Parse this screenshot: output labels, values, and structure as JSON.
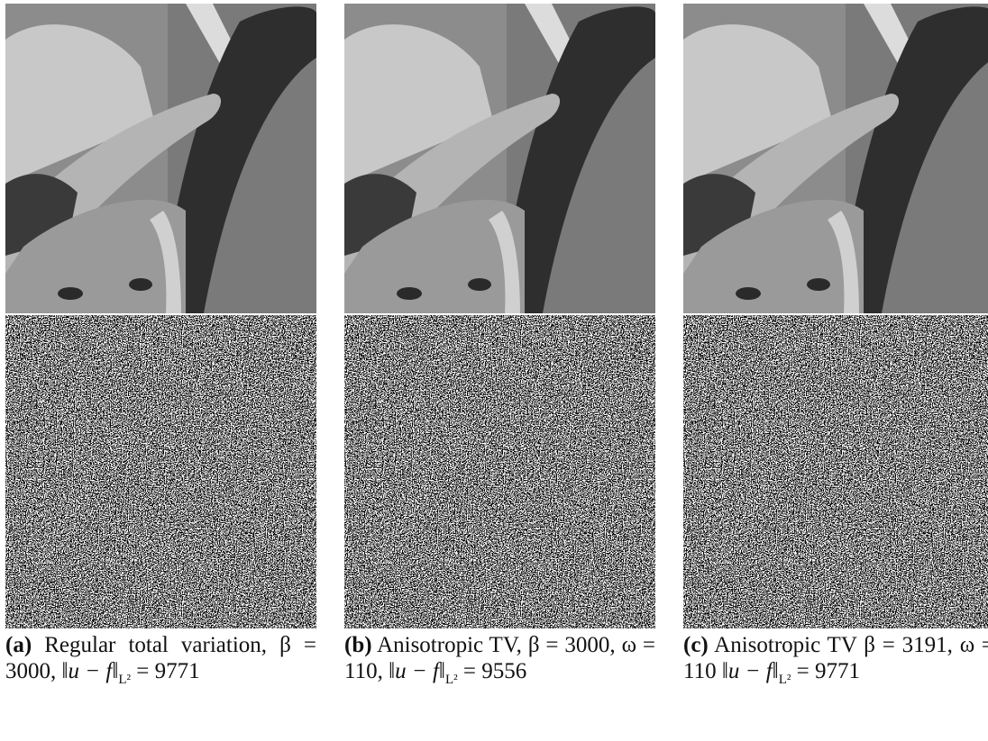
{
  "figures": [
    {
      "label": "(a)",
      "description": "Regular total variation,",
      "beta": "β = 3000,",
      "norm": "‖u − f‖",
      "norm_sub": "L²",
      "norm_value": "= 9771"
    },
    {
      "label": "(b)",
      "description": "Anisotropic TV,",
      "beta": "β = 3000,",
      "omega": "ω = 110,",
      "norm": "‖u − f‖",
      "norm_sub": "L²",
      "norm_value": "= 9556"
    },
    {
      "label": "(c)",
      "description": "Anisotropic TV",
      "beta": "β = 3191,",
      "omega": "ω = 110",
      "norm": "‖u − f‖",
      "norm_sub": "L²",
      "norm_value": "= 9771"
    }
  ]
}
